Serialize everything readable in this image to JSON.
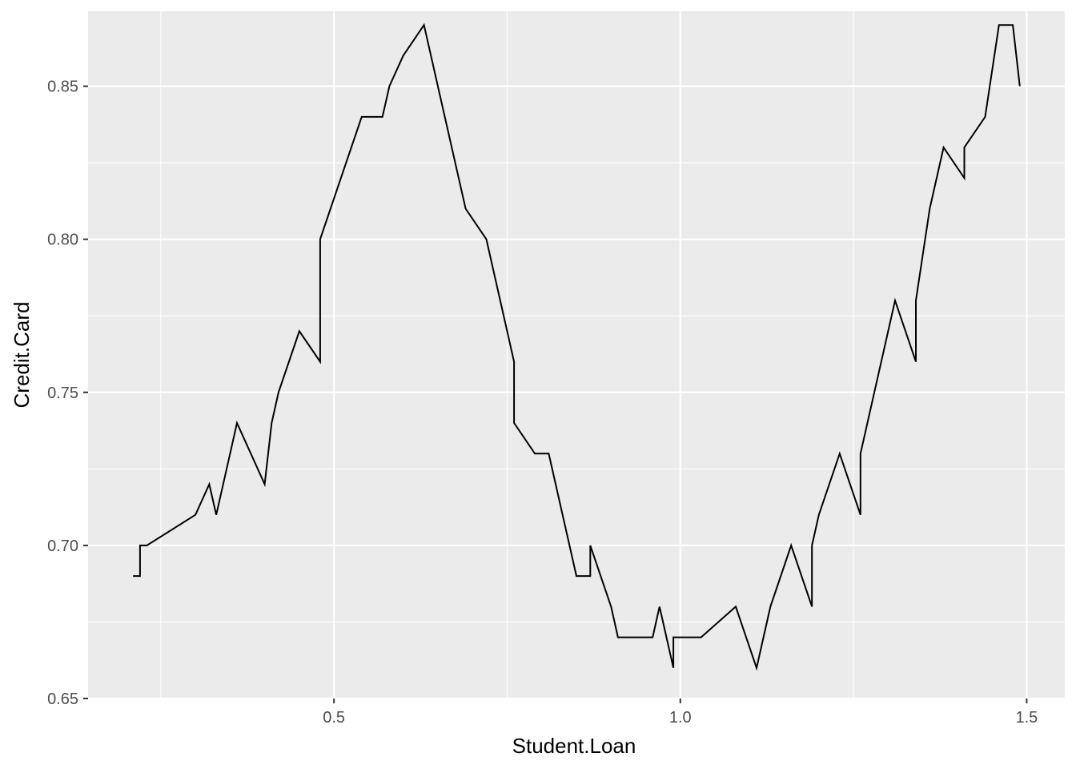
{
  "chart_data": {
    "type": "line",
    "title": "",
    "xlabel": "Student.Loan",
    "ylabel": "Credit.Card",
    "xlim": [
      0.145,
      1.555
    ],
    "ylim": [
      0.65,
      0.8745
    ],
    "x_ticks": [
      {
        "value": 0.5,
        "label": "0.5"
      },
      {
        "value": 1.0,
        "label": "1.0"
      },
      {
        "value": 1.5,
        "label": "1.5"
      }
    ],
    "y_ticks": [
      {
        "value": 0.65,
        "label": "0.65"
      },
      {
        "value": 0.7,
        "label": "0.70"
      },
      {
        "value": 0.75,
        "label": "0.75"
      },
      {
        "value": 0.8,
        "label": "0.80"
      },
      {
        "value": 0.85,
        "label": "0.85"
      }
    ],
    "grid": true,
    "colors": {
      "panel": "#ebebeb",
      "grid_major": "#ffffff",
      "line": "#000000"
    },
    "series": [
      {
        "x": [
          0.21,
          0.22,
          0.22,
          0.23,
          0.3,
          0.32,
          0.33,
          0.35,
          0.36,
          0.4,
          0.41,
          0.42,
          0.45,
          0.48,
          0.48,
          0.51,
          0.54,
          0.54,
          0.57,
          0.58,
          0.6,
          0.63,
          0.66,
          0.69,
          0.72,
          0.76,
          0.76,
          0.79,
          0.81,
          0.85,
          0.87,
          0.87,
          0.9,
          0.91,
          0.96,
          0.97,
          0.99,
          0.99,
          1.03,
          1.08,
          1.11,
          1.13,
          1.16,
          1.19,
          1.19,
          1.2,
          1.23,
          1.26,
          1.26,
          1.31,
          1.34,
          1.34,
          1.36,
          1.38,
          1.41,
          1.41,
          1.44,
          1.46,
          1.48,
          1.49
        ],
        "y": [
          0.69,
          0.69,
          0.7,
          0.7,
          0.71,
          0.72,
          0.71,
          0.73,
          0.74,
          0.72,
          0.74,
          0.75,
          0.77,
          0.76,
          0.8,
          0.82,
          0.84,
          0.84,
          0.84,
          0.85,
          0.86,
          0.87,
          0.84,
          0.81,
          0.8,
          0.76,
          0.74,
          0.73,
          0.73,
          0.69,
          0.69,
          0.7,
          0.68,
          0.67,
          0.67,
          0.68,
          0.66,
          0.67,
          0.67,
          0.68,
          0.66,
          0.68,
          0.7,
          0.68,
          0.7,
          0.71,
          0.73,
          0.71,
          0.73,
          0.78,
          0.76,
          0.78,
          0.81,
          0.83,
          0.82,
          0.83,
          0.84,
          0.87,
          0.87,
          0.85
        ]
      }
    ]
  }
}
